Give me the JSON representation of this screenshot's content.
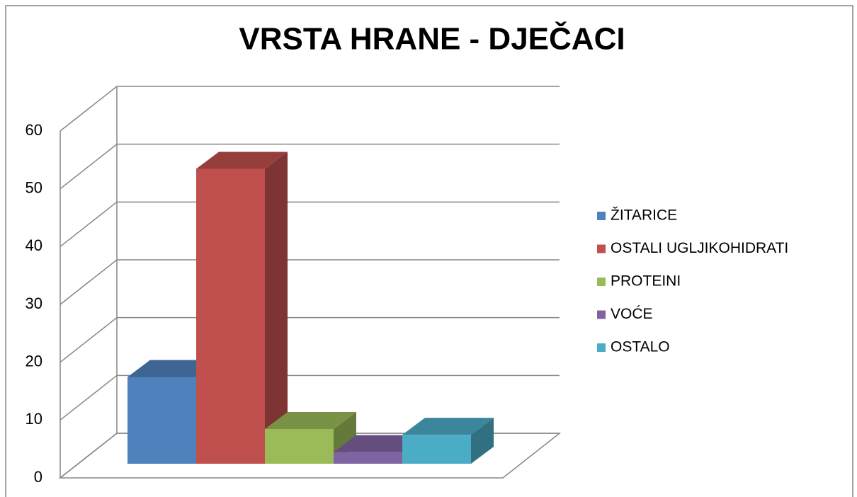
{
  "chart_data": {
    "type": "bar3d",
    "title": "VRSTA HRANE - DJEČACI",
    "series": [
      {
        "name": "ŽITARICE",
        "color": "#4f81bd",
        "values": [
          15
        ]
      },
      {
        "name": "OSTALI UGLJIKOHIDRATI",
        "color": "#c0504d",
        "values": [
          51
        ]
      },
      {
        "name": "PROTEINI",
        "color": "#9bbb59",
        "values": [
          6
        ]
      },
      {
        "name": "VOĆE",
        "color": "#8064a2",
        "values": [
          2
        ]
      },
      {
        "name": "OSTALO",
        "color": "#4bacc6",
        "values": [
          5
        ]
      }
    ],
    "ylim": [
      0,
      60
    ],
    "yticks": [
      0,
      10,
      20,
      30,
      40,
      50,
      60
    ],
    "grid": true,
    "legend": "right"
  }
}
